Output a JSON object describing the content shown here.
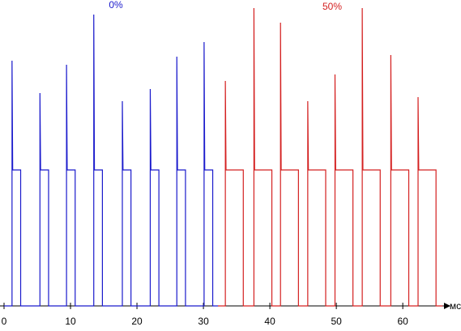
{
  "chart_data": {
    "type": "line",
    "x_label": "мс",
    "xlim": [
      0,
      66.2
    ],
    "xticks": [
      0,
      10,
      20,
      30,
      40,
      50,
      60
    ],
    "ylim": [
      0,
      378
    ],
    "series": [
      {
        "name": "0%",
        "color": "#1a1acc",
        "x": [
          0,
          1.2,
          1.2,
          1.3,
          2.5,
          2.5,
          5.4,
          5.4,
          5.5,
          6.7,
          6.7,
          9.4,
          9.4,
          9.5,
          10.7,
          10.7,
          13.5,
          13.5,
          13.6,
          14.8,
          14.8,
          17.8,
          17.8,
          17.9,
          19.1,
          19.1,
          22.0,
          22.0,
          22.1,
          23.3,
          23.3,
          26.0,
          26.0,
          26.1,
          27.3,
          27.3,
          30.1,
          30.1,
          30.2,
          31.4,
          31.4,
          32.2
        ],
        "values": [
          0,
          0,
          303,
          168,
          168,
          0,
          0,
          263,
          168,
          168,
          0,
          0,
          298,
          168,
          168,
          0,
          0,
          360,
          168,
          168,
          0,
          0,
          253,
          168,
          168,
          0,
          0,
          268,
          168,
          168,
          0,
          0,
          308,
          168,
          168,
          0,
          0,
          326,
          168,
          168,
          0,
          0
        ]
      },
      {
        "name": "50%",
        "color": "#d42020",
        "x": [
          32.2,
          33.3,
          33.3,
          33.4,
          36.0,
          36.0,
          37.6,
          37.6,
          37.7,
          40.3,
          40.3,
          41.6,
          41.6,
          41.7,
          44.3,
          44.3,
          45.7,
          45.7,
          45.8,
          48.4,
          48.4,
          49.8,
          49.8,
          49.9,
          52.5,
          52.5,
          53.9,
          53.9,
          54.0,
          56.6,
          56.6,
          58.2,
          58.2,
          58.3,
          60.9,
          60.9,
          62.3,
          62.3,
          62.4,
          65.0,
          65.0,
          66.0
        ],
        "values": [
          0,
          0,
          278,
          168,
          168,
          0,
          0,
          368,
          168,
          168,
          0,
          0,
          350,
          168,
          168,
          0,
          0,
          253,
          168,
          168,
          0,
          0,
          286,
          168,
          168,
          0,
          0,
          368,
          168,
          168,
          0,
          0,
          310,
          168,
          168,
          0,
          0,
          258,
          168,
          168,
          0,
          0
        ]
      }
    ]
  }
}
